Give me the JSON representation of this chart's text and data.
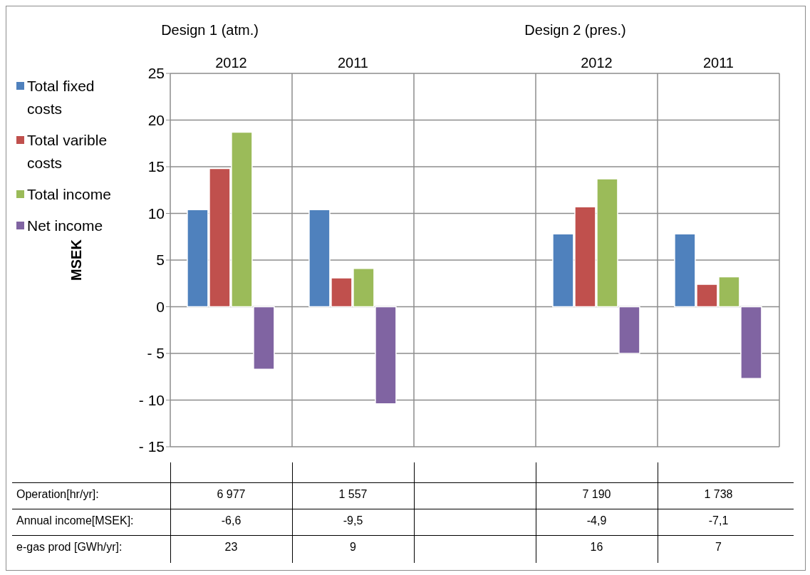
{
  "chart_data": {
    "type": "bar",
    "categories": [
      "2012",
      "2011",
      null,
      "2012",
      "2011"
    ],
    "series": [
      {
        "name": "Total fixed costs",
        "color": "#4f81bd",
        "values": [
          10.4,
          10.4,
          null,
          7.8,
          7.8
        ]
      },
      {
        "name": "Total varible costs",
        "color": "#c0504d",
        "values": [
          14.8,
          3.1,
          null,
          10.7,
          2.4
        ]
      },
      {
        "name": "Total income",
        "color": "#9bbb59",
        "values": [
          18.7,
          4.1,
          null,
          13.7,
          3.2
        ]
      },
      {
        "name": "Net income",
        "color": "#8064a2",
        "values": [
          -6.7,
          -10.4,
          null,
          -5.0,
          -7.7
        ]
      }
    ],
    "ylabel": "MSEK",
    "ylim": [
      -15,
      25
    ],
    "yticks": [
      {
        "value": -15,
        "label": "- 15"
      },
      {
        "value": -10,
        "label": "- 10"
      },
      {
        "value": -5,
        "label": "- 5"
      },
      0,
      5,
      10,
      15,
      20,
      25
    ],
    "grid": true,
    "legend": "left",
    "annotations": [
      "Design 1 (atm.)",
      "Design 2 (pres.)",
      "Operation[hr/yr]:",
      "6 977",
      "1 557",
      "7  190",
      "1 738",
      "Annual income[MSEK]:",
      "-6,6",
      "-9,5",
      "-4,9",
      "-7,1",
      "e-gas prod [GWh/yr]:",
      "23",
      "9",
      "16",
      "7"
    ]
  }
}
